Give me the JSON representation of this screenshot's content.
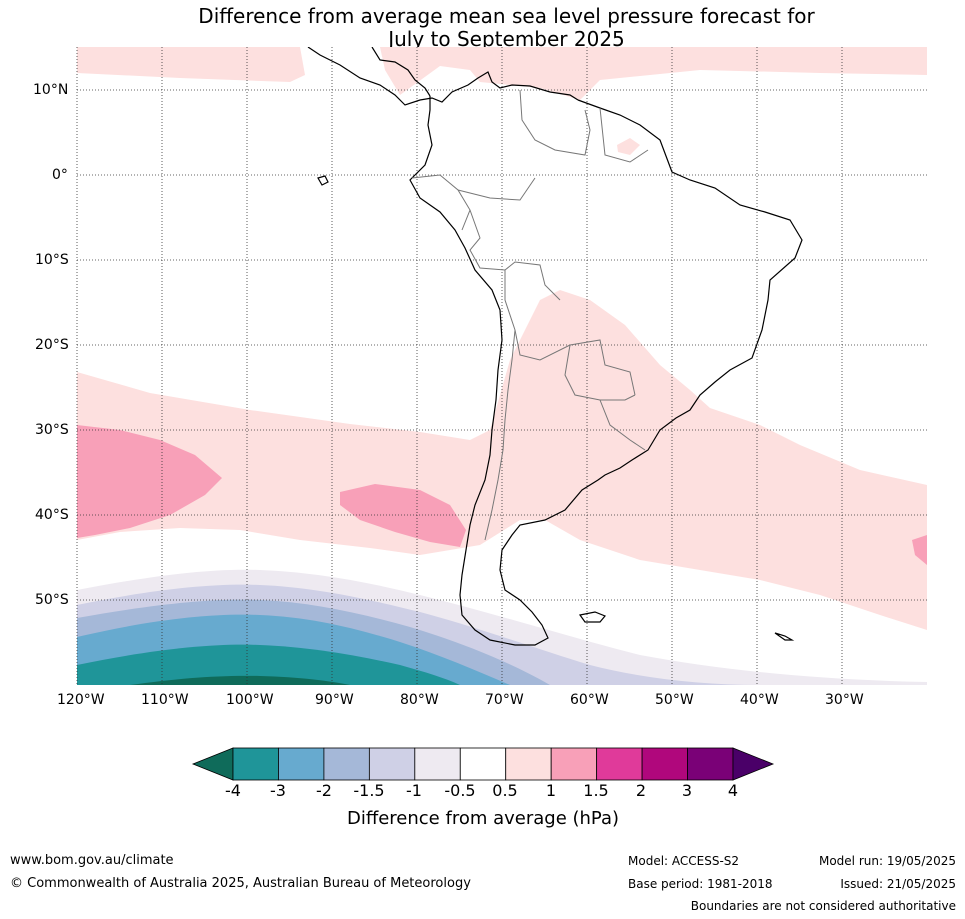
{
  "title_line1": "Difference from average mean sea level pressure forecast for",
  "title_line2": "July to September 2025",
  "lat_labels": [
    "10°N",
    "0°",
    "10°S",
    "20°S",
    "30°S",
    "40°S",
    "50°S"
  ],
  "lon_labels": [
    "120°W",
    "110°W",
    "100°W",
    "90°W",
    "80°W",
    "70°W",
    "60°W",
    "50°W",
    "40°W",
    "30°W"
  ],
  "colorbar": {
    "title": "Difference from average (hPa)",
    "tick_labels": [
      "-4",
      "-3",
      "-2",
      "-1.5",
      "-1",
      "-0.5",
      "0.5",
      "1",
      "1.5",
      "2",
      "3",
      "4"
    ],
    "colors": [
      "#0f6b5a",
      "#1f9599",
      "#67aacf",
      "#a5b8d8",
      "#cfd0e6",
      "#eeeaf1",
      "#ffffff",
      "#fde0df",
      "#f8a0b8",
      "#e03a9a",
      "#b0077c",
      "#7a0177",
      "#4a0068"
    ]
  },
  "footer": {
    "website": "www.bom.gov.au/climate",
    "copyright": "© Commonwealth of Australia 2025, Australian Bureau of Meteorology",
    "model": "Model: ACCESS-S2",
    "base_period": "Base period: 1981-2018",
    "model_run": "Model run: 19/05/2025",
    "issued": "Issued: 21/05/2025",
    "disclaimer": "Boundaries are not considered authoritative"
  }
}
